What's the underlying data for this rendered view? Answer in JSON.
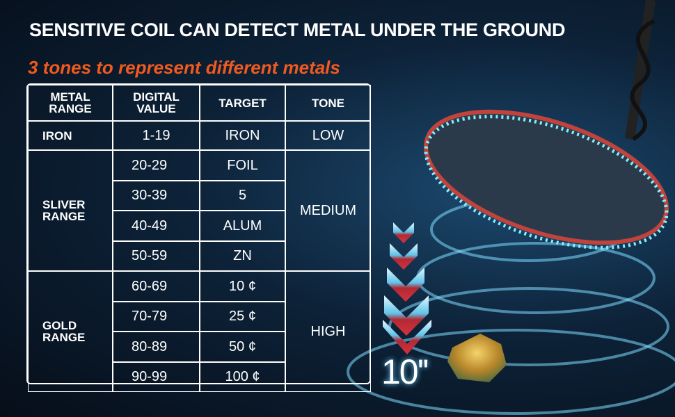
{
  "header": {
    "title": "SENSITIVE COIL CAN DETECT METAL UNDER THE GROUND",
    "subtitle": "3 tones to represent different metals"
  },
  "table": {
    "columns": [
      "METAL RANGE",
      "DIGITAL VALUE",
      "TARGET",
      "TONE"
    ],
    "groups": [
      {
        "range": "IRON",
        "tone": "LOW",
        "rows": [
          [
            "1-19",
            "IRON"
          ]
        ]
      },
      {
        "range": "SLIVER RANGE",
        "tone": "MEDIUM",
        "rows": [
          [
            "20-29",
            "FOIL"
          ],
          [
            "30-39",
            "5"
          ],
          [
            "40-49",
            "ALUM"
          ],
          [
            "50-59",
            "ZN"
          ]
        ]
      },
      {
        "range": "GOLD RANGE",
        "tone": "HIGH",
        "rows": [
          [
            "60-69",
            "10 ¢"
          ],
          [
            "70-79",
            "25 ¢"
          ],
          [
            "80-89",
            "50 ¢"
          ],
          [
            "90-99",
            "100 ¢"
          ]
        ]
      }
    ]
  },
  "depth": "10''"
}
